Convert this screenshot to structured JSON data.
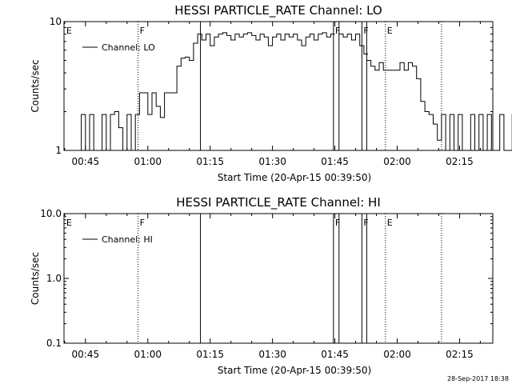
{
  "timestamp": "28-Sep-2017 18:38",
  "chart_data": [
    {
      "type": "line",
      "title": "HESSI PARTICLE_RATE Channel: LO",
      "xlabel": "Start Time (20-Apr-15 00:39:50)",
      "ylabel": "Counts/sec",
      "yscale": "log",
      "xlim": [
        "00:39:50",
        "02:23:00"
      ],
      "ylim": [
        1,
        10
      ],
      "x_ticks": [
        "00:45",
        "01:00",
        "01:15",
        "01:30",
        "01:45",
        "02:00",
        "02:15"
      ],
      "y_ticks": [
        "1",
        "10"
      ],
      "legend": {
        "position": "top-left",
        "entries": [
          "Channel: LO"
        ]
      },
      "grid": false,
      "markers": [
        {
          "time": "00:40:00",
          "label": "E",
          "style": "none"
        },
        {
          "time": "00:57:40",
          "label": "F",
          "style": "dotted"
        },
        {
          "time": "01:12:40",
          "label": "",
          "style": "solid"
        },
        {
          "time": "01:44:40",
          "label": "F",
          "style": "solid"
        },
        {
          "time": "01:46:00",
          "label": "",
          "style": "solid"
        },
        {
          "time": "01:51:30",
          "label": "F",
          "style": "solid"
        },
        {
          "time": "01:52:40",
          "label": "",
          "style": "solid"
        },
        {
          "time": "01:57:10",
          "label": "E",
          "style": "dotted"
        },
        {
          "time": "02:10:40",
          "label": "",
          "style": "dotted"
        }
      ],
      "series": [
        {
          "name": "Channel: LO",
          "data_segments": [
            {
              "start": "00:42:00",
              "step_sec": 60,
              "values": [
                1,
                1,
                1.9,
                1,
                1.9,
                1,
                1,
                1.9,
                1,
                1.9,
                2,
                1.5,
                1,
                1.9,
                1,
                1.9,
                2.8,
                2.8,
                1.9,
                2.8,
                2.2,
                1.8,
                2.8,
                2.8,
                2.8,
                4.5,
                5.2,
                5.3,
                5.0,
                6.8,
                8.0,
                7.2,
                8.0,
                6.5,
                7.6,
                8.0,
                8.2,
                7.8,
                7.2,
                8.0,
                7.6,
                8.0,
                8.2,
                7.8,
                7.2,
                8.0,
                7.6,
                6.5,
                7.6,
                8.0,
                7.2,
                8.0,
                7.6,
                8.0,
                7.2,
                6.5,
                7.6,
                8.0,
                7.2,
                8.0,
                8.2,
                7.6,
                8.0
              ]
            },
            {
              "start": "01:46:00",
              "step_sec": 60,
              "values": [
                8.0,
                7.6,
                8.0,
                7.2,
                8.0,
                6.5,
                5.6
              ]
            },
            {
              "start": "01:52:40",
              "step_sec": 60,
              "values": [
                5.0,
                4.5,
                4.2,
                4.8,
                4.2,
                4.2,
                4.2,
                4.2,
                4.8,
                4.2,
                4.8,
                4.5,
                3.6,
                2.4,
                2.0,
                1.9,
                1.6,
                1.2,
                1.9,
                1.0,
                1.9,
                1.0,
                1.9,
                1.0,
                1.0,
                1.9,
                1.0,
                1.9,
                1.0,
                1.9,
                1.0,
                1.0,
                1.9,
                1.0,
                1.0,
                1.9,
                1.0,
                1.0,
                1.0
              ]
            }
          ]
        }
      ]
    },
    {
      "type": "line",
      "title": "HESSI PARTICLE_RATE Channel: HI",
      "xlabel": "Start Time (20-Apr-15 00:39:50)",
      "ylabel": "Counts/sec",
      "yscale": "log",
      "xlim": [
        "00:39:50",
        "02:23:00"
      ],
      "ylim": [
        0.1,
        10.0
      ],
      "x_ticks": [
        "00:45",
        "01:00",
        "01:15",
        "01:30",
        "01:45",
        "02:00",
        "02:15"
      ],
      "y_ticks": [
        "0.1",
        "1.0",
        "10.0"
      ],
      "legend": {
        "position": "top-left",
        "entries": [
          "Channel: HI"
        ]
      },
      "grid": false,
      "markers": [
        {
          "time": "00:40:00",
          "label": "E",
          "style": "none"
        },
        {
          "time": "00:57:40",
          "label": "F",
          "style": "dotted"
        },
        {
          "time": "01:12:40",
          "label": "",
          "style": "solid"
        },
        {
          "time": "01:44:40",
          "label": "F",
          "style": "solid"
        },
        {
          "time": "01:46:00",
          "label": "",
          "style": "solid"
        },
        {
          "time": "01:51:30",
          "label": "F",
          "style": "solid"
        },
        {
          "time": "01:52:40",
          "label": "",
          "style": "solid"
        },
        {
          "time": "01:57:10",
          "label": "E",
          "style": "dotted"
        },
        {
          "time": "02:10:40",
          "label": "",
          "style": "dotted"
        }
      ],
      "series": [
        {
          "name": "Channel: HI",
          "data_segments": []
        }
      ]
    }
  ]
}
